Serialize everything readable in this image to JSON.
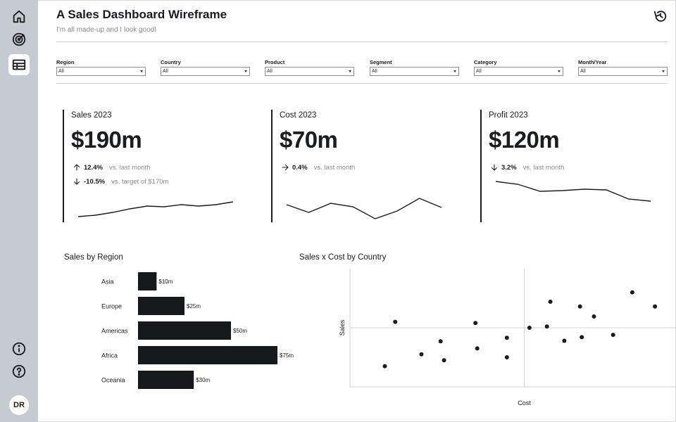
{
  "sidebar": {
    "nav": [
      {
        "icon": "home-icon"
      },
      {
        "icon": "target-icon"
      },
      {
        "icon": "table-icon",
        "active": true
      }
    ],
    "bottom": [
      {
        "icon": "info-icon"
      },
      {
        "icon": "help-icon"
      }
    ],
    "avatar": "DR"
  },
  "header": {
    "title": "A Sales Dashboard Wireframe",
    "subtitle": "I'm all made-up and I look good!",
    "refresh_icon": "refresh-icon"
  },
  "filters": [
    {
      "label": "Region",
      "value": "All"
    },
    {
      "label": "Country",
      "value": "All"
    },
    {
      "label": "Product",
      "value": "All"
    },
    {
      "label": "Segment",
      "value": "All"
    },
    {
      "label": "Category",
      "value": "All"
    },
    {
      "label": "Month/Year",
      "value": "All"
    }
  ],
  "kpis": [
    {
      "title": "Sales 2023",
      "value": "$190m",
      "rows": [
        {
          "direction": "up",
          "pct": "12.4%",
          "cmp": "vs. last month"
        },
        {
          "direction": "down",
          "pct": "-10.5%",
          "cmp": "vs. target of $170m"
        }
      ],
      "trend": [
        8,
        10,
        14,
        19,
        23,
        22,
        25,
        23,
        25,
        29
      ]
    },
    {
      "title": "Cost 2023",
      "value": "$70m",
      "rows": [
        {
          "direction": "right",
          "pct": "0.4%",
          "cmp": "vs. last month"
        }
      ],
      "trend": [
        25,
        14,
        27,
        22,
        5,
        16,
        34,
        21
      ]
    },
    {
      "title": "Profit 2023",
      "value": "$120m",
      "rows": [
        {
          "direction": "down",
          "pct": "3.2%",
          "cmp": "vs. last month"
        }
      ],
      "trend": [
        58,
        54,
        44,
        45,
        47,
        46,
        33,
        30
      ]
    }
  ],
  "chart_data": [
    {
      "type": "bar",
      "title": "Sales by Region",
      "categories": [
        "Asia",
        "Europe",
        "Americas",
        "Africa",
        "Oceania"
      ],
      "values": [
        10,
        25,
        50,
        75,
        30
      ],
      "data_labels": [
        "$10m",
        "$25m",
        "$50m",
        "$75m",
        "$30m"
      ],
      "xlim": [
        0,
        75
      ]
    },
    {
      "type": "scatter",
      "title": "Sales x Cost by Country",
      "xlabel": "Cost",
      "ylabel": "Sales",
      "points": [
        [
          -0.8,
          -0.65
        ],
        [
          -0.74,
          0.1
        ],
        [
          -0.59,
          -0.45
        ],
        [
          -0.48,
          -0.23
        ],
        [
          -0.46,
          -0.55
        ],
        [
          -0.28,
          0.08
        ],
        [
          -0.27,
          -0.35
        ],
        [
          -0.1,
          -0.17
        ],
        [
          -0.1,
          -0.5
        ],
        [
          0.03,
          0.0
        ],
        [
          0.13,
          0.02
        ],
        [
          0.15,
          0.44
        ],
        [
          0.23,
          -0.22
        ],
        [
          0.32,
          0.36
        ],
        [
          0.33,
          -0.16
        ],
        [
          0.4,
          0.19
        ],
        [
          0.51,
          -0.12
        ],
        [
          0.62,
          0.6
        ],
        [
          0.75,
          0.36
        ]
      ],
      "xlim": [
        -1,
        1
      ],
      "ylim": [
        -1,
        1
      ],
      "color": "#1a1c1e"
    }
  ]
}
